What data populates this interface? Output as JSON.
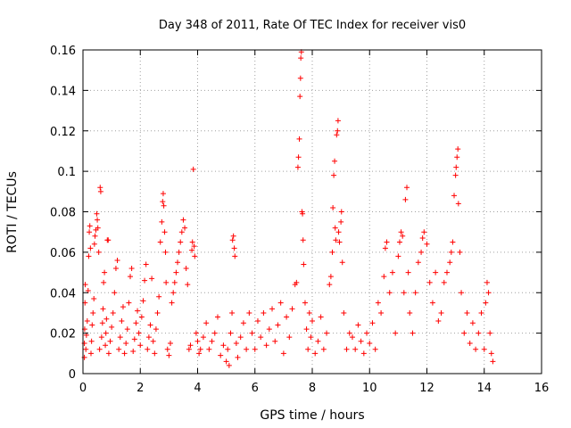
{
  "chart_data": {
    "type": "scatter",
    "title": "Day 348 of 2011, Rate Of TEC Index for receiver vis0",
    "xlabel": "GPS time / hours",
    "ylabel": "ROTI / TECUs",
    "xlim": [
      0,
      16
    ],
    "ylim": [
      0,
      0.16
    ],
    "x_ticks": [
      0,
      2,
      4,
      6,
      8,
      10,
      12,
      14,
      16
    ],
    "y_ticks": [
      0,
      0.02,
      0.04,
      0.06,
      0.08,
      0.1,
      0.12,
      0.14,
      0.16
    ],
    "x_tick_labels": [
      "0",
      "2",
      "4",
      "6",
      "8",
      "10",
      "12",
      "14",
      "16"
    ],
    "y_tick_labels": [
      "0",
      "0.02",
      "0.04",
      "0.06",
      "0.08",
      "0.1",
      "0.12",
      "0.14",
      "0.16"
    ],
    "grid": true,
    "marker": "plus",
    "color": "#ff0000",
    "points": [
      [
        0.05,
        0.008
      ],
      [
        0.05,
        0.015
      ],
      [
        0.06,
        0.022
      ],
      [
        0.07,
        0.035
      ],
      [
        0.08,
        0.044
      ],
      [
        0.1,
        0.012
      ],
      [
        0.12,
        0.019
      ],
      [
        0.15,
        0.026
      ],
      [
        0.18,
        0.041
      ],
      [
        0.2,
        0.058
      ],
      [
        0.22,
        0.07
      ],
      [
        0.24,
        0.073
      ],
      [
        0.26,
        0.062
      ],
      [
        0.28,
        0.01
      ],
      [
        0.3,
        0.016
      ],
      [
        0.32,
        0.024
      ],
      [
        0.35,
        0.03
      ],
      [
        0.38,
        0.037
      ],
      [
        0.4,
        0.064
      ],
      [
        0.42,
        0.068
      ],
      [
        0.45,
        0.071
      ],
      [
        0.48,
        0.079
      ],
      [
        0.5,
        0.076
      ],
      [
        0.52,
        0.072
      ],
      [
        0.55,
        0.06
      ],
      [
        0.58,
        0.012
      ],
      [
        0.6,
        0.092
      ],
      [
        0.62,
        0.09
      ],
      [
        0.65,
        0.018
      ],
      [
        0.68,
        0.025
      ],
      [
        0.7,
        0.032
      ],
      [
        0.72,
        0.045
      ],
      [
        0.75,
        0.05
      ],
      [
        0.78,
        0.014
      ],
      [
        0.8,
        0.02
      ],
      [
        0.82,
        0.027
      ],
      [
        0.85,
        0.066
      ],
      [
        0.88,
        0.066
      ],
      [
        0.9,
        0.01
      ],
      [
        0.95,
        0.016
      ],
      [
        1.0,
        0.023
      ],
      [
        1.05,
        0.03
      ],
      [
        1.1,
        0.04
      ],
      [
        1.15,
        0.052
      ],
      [
        1.2,
        0.056
      ],
      [
        1.25,
        0.012
      ],
      [
        1.3,
        0.018
      ],
      [
        1.35,
        0.026
      ],
      [
        1.4,
        0.033
      ],
      [
        1.45,
        0.01
      ],
      [
        1.5,
        0.015
      ],
      [
        1.55,
        0.022
      ],
      [
        1.6,
        0.035
      ],
      [
        1.65,
        0.048
      ],
      [
        1.7,
        0.052
      ],
      [
        1.75,
        0.011
      ],
      [
        1.8,
        0.017
      ],
      [
        1.85,
        0.025
      ],
      [
        1.9,
        0.031
      ],
      [
        1.95,
        0.02
      ],
      [
        2.0,
        0.014
      ],
      [
        2.05,
        0.028
      ],
      [
        2.1,
        0.036
      ],
      [
        2.15,
        0.046
      ],
      [
        2.2,
        0.054
      ],
      [
        2.25,
        0.012
      ],
      [
        2.3,
        0.018
      ],
      [
        2.35,
        0.024
      ],
      [
        2.4,
        0.047
      ],
      [
        2.45,
        0.016
      ],
      [
        2.5,
        0.01
      ],
      [
        2.55,
        0.022
      ],
      [
        2.6,
        0.03
      ],
      [
        2.65,
        0.038
      ],
      [
        2.7,
        0.065
      ],
      [
        2.75,
        0.075
      ],
      [
        2.78,
        0.085
      ],
      [
        2.8,
        0.089
      ],
      [
        2.82,
        0.083
      ],
      [
        2.85,
        0.07
      ],
      [
        2.88,
        0.06
      ],
      [
        2.9,
        0.045
      ],
      [
        2.95,
        0.012
      ],
      [
        3.0,
        0.009
      ],
      [
        3.05,
        0.015
      ],
      [
        3.1,
        0.035
      ],
      [
        3.15,
        0.04
      ],
      [
        3.2,
        0.045
      ],
      [
        3.25,
        0.05
      ],
      [
        3.3,
        0.055
      ],
      [
        3.35,
        0.06
      ],
      [
        3.4,
        0.065
      ],
      [
        3.45,
        0.07
      ],
      [
        3.5,
        0.076
      ],
      [
        3.55,
        0.072
      ],
      [
        3.6,
        0.052
      ],
      [
        3.65,
        0.044
      ],
      [
        3.7,
        0.012
      ],
      [
        3.75,
        0.014
      ],
      [
        3.8,
        0.061
      ],
      [
        3.82,
        0.065
      ],
      [
        3.85,
        0.101
      ],
      [
        3.88,
        0.063
      ],
      [
        3.9,
        0.058
      ],
      [
        3.95,
        0.02
      ],
      [
        4.0,
        0.016
      ],
      [
        4.05,
        0.01
      ],
      [
        4.1,
        0.012
      ],
      [
        4.2,
        0.018
      ],
      [
        4.3,
        0.025
      ],
      [
        4.4,
        0.012
      ],
      [
        4.5,
        0.016
      ],
      [
        4.6,
        0.02
      ],
      [
        4.7,
        0.028
      ],
      [
        4.8,
        0.009
      ],
      [
        4.9,
        0.014
      ],
      [
        5.0,
        0.006
      ],
      [
        5.05,
        0.012
      ],
      [
        5.1,
        0.004
      ],
      [
        5.15,
        0.02
      ],
      [
        5.2,
        0.03
      ],
      [
        5.22,
        0.066
      ],
      [
        5.25,
        0.068
      ],
      [
        5.28,
        0.062
      ],
      [
        5.3,
        0.058
      ],
      [
        5.35,
        0.015
      ],
      [
        5.4,
        0.008
      ],
      [
        5.5,
        0.018
      ],
      [
        5.6,
        0.025
      ],
      [
        5.7,
        0.012
      ],
      [
        5.8,
        0.03
      ],
      [
        5.9,
        0.02
      ],
      [
        6.0,
        0.012
      ],
      [
        6.1,
        0.026
      ],
      [
        6.2,
        0.018
      ],
      [
        6.3,
        0.03
      ],
      [
        6.4,
        0.014
      ],
      [
        6.5,
        0.022
      ],
      [
        6.6,
        0.032
      ],
      [
        6.7,
        0.016
      ],
      [
        6.8,
        0.024
      ],
      [
        6.9,
        0.035
      ],
      [
        7.0,
        0.01
      ],
      [
        7.1,
        0.028
      ],
      [
        7.2,
        0.018
      ],
      [
        7.3,
        0.032
      ],
      [
        7.4,
        0.044
      ],
      [
        7.45,
        0.045
      ],
      [
        7.5,
        0.102
      ],
      [
        7.52,
        0.107
      ],
      [
        7.55,
        0.116
      ],
      [
        7.57,
        0.137
      ],
      [
        7.59,
        0.146
      ],
      [
        7.6,
        0.156
      ],
      [
        7.62,
        0.159
      ],
      [
        7.64,
        0.08
      ],
      [
        7.66,
        0.079
      ],
      [
        7.68,
        0.066
      ],
      [
        7.7,
        0.054
      ],
      [
        7.75,
        0.035
      ],
      [
        7.8,
        0.022
      ],
      [
        7.85,
        0.012
      ],
      [
        7.9,
        0.03
      ],
      [
        7.95,
        0.018
      ],
      [
        8.0,
        0.026
      ],
      [
        8.1,
        0.01
      ],
      [
        8.2,
        0.016
      ],
      [
        8.3,
        0.028
      ],
      [
        8.4,
        0.012
      ],
      [
        8.5,
        0.02
      ],
      [
        8.6,
        0.044
      ],
      [
        8.65,
        0.048
      ],
      [
        8.7,
        0.06
      ],
      [
        8.72,
        0.082
      ],
      [
        8.75,
        0.098
      ],
      [
        8.78,
        0.105
      ],
      [
        8.8,
        0.072
      ],
      [
        8.82,
        0.066
      ],
      [
        8.85,
        0.118
      ],
      [
        8.88,
        0.12
      ],
      [
        8.9,
        0.125
      ],
      [
        8.92,
        0.07
      ],
      [
        8.95,
        0.065
      ],
      [
        9.0,
        0.075
      ],
      [
        9.02,
        0.08
      ],
      [
        9.05,
        0.055
      ],
      [
        9.1,
        0.03
      ],
      [
        9.2,
        0.012
      ],
      [
        9.3,
        0.02
      ],
      [
        9.4,
        0.018
      ],
      [
        9.5,
        0.012
      ],
      [
        9.6,
        0.024
      ],
      [
        9.7,
        0.016
      ],
      [
        9.8,
        0.01
      ],
      [
        9.9,
        0.02
      ],
      [
        10.0,
        0.015
      ],
      [
        10.1,
        0.025
      ],
      [
        10.2,
        0.012
      ],
      [
        10.3,
        0.035
      ],
      [
        10.4,
        0.03
      ],
      [
        10.5,
        0.048
      ],
      [
        10.55,
        0.062
      ],
      [
        10.6,
        0.065
      ],
      [
        10.7,
        0.04
      ],
      [
        10.8,
        0.05
      ],
      [
        10.9,
        0.02
      ],
      [
        11.0,
        0.058
      ],
      [
        11.05,
        0.065
      ],
      [
        11.1,
        0.07
      ],
      [
        11.15,
        0.068
      ],
      [
        11.2,
        0.04
      ],
      [
        11.25,
        0.086
      ],
      [
        11.3,
        0.092
      ],
      [
        11.35,
        0.05
      ],
      [
        11.4,
        0.03
      ],
      [
        11.5,
        0.02
      ],
      [
        11.6,
        0.04
      ],
      [
        11.7,
        0.055
      ],
      [
        11.8,
        0.06
      ],
      [
        11.85,
        0.067
      ],
      [
        11.9,
        0.07
      ],
      [
        12.0,
        0.064
      ],
      [
        12.1,
        0.045
      ],
      [
        12.2,
        0.035
      ],
      [
        12.3,
        0.05
      ],
      [
        12.4,
        0.026
      ],
      [
        12.5,
        0.03
      ],
      [
        12.6,
        0.045
      ],
      [
        12.7,
        0.05
      ],
      [
        12.8,
        0.055
      ],
      [
        12.85,
        0.06
      ],
      [
        12.9,
        0.065
      ],
      [
        12.95,
        0.088
      ],
      [
        13.0,
        0.098
      ],
      [
        13.02,
        0.102
      ],
      [
        13.05,
        0.107
      ],
      [
        13.08,
        0.111
      ],
      [
        13.1,
        0.084
      ],
      [
        13.15,
        0.06
      ],
      [
        13.2,
        0.04
      ],
      [
        13.3,
        0.02
      ],
      [
        13.4,
        0.03
      ],
      [
        13.5,
        0.015
      ],
      [
        13.6,
        0.025
      ],
      [
        13.7,
        0.012
      ],
      [
        13.8,
        0.02
      ],
      [
        13.9,
        0.03
      ],
      [
        14.0,
        0.012
      ],
      [
        14.05,
        0.035
      ],
      [
        14.1,
        0.045
      ],
      [
        14.15,
        0.04
      ],
      [
        14.2,
        0.02
      ],
      [
        14.25,
        0.01
      ],
      [
        14.3,
        0.006
      ]
    ]
  }
}
